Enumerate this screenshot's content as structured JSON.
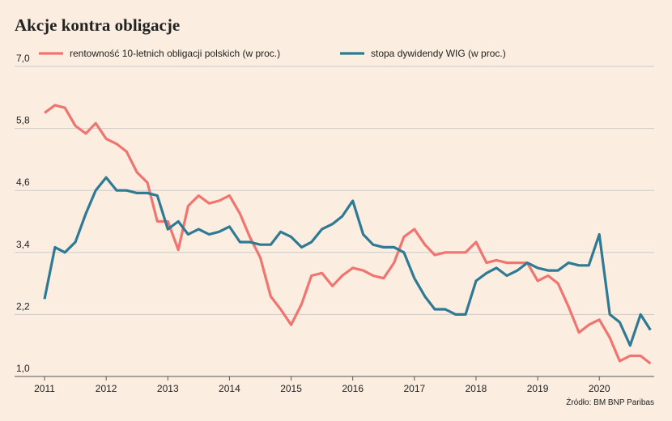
{
  "chart_data": {
    "type": "line",
    "title": "Akcje kontra obligacje",
    "source": "Źródło: BM BNP Paribas",
    "x": [
      2011,
      2011.17,
      2011.33,
      2011.5,
      2011.67,
      2011.83,
      2012,
      2012.17,
      2012.33,
      2012.5,
      2012.67,
      2012.83,
      2013,
      2013.17,
      2013.33,
      2013.5,
      2013.67,
      2013.83,
      2014,
      2014.17,
      2014.33,
      2014.5,
      2014.67,
      2014.83,
      2015,
      2015.17,
      2015.33,
      2015.5,
      2015.67,
      2015.83,
      2016,
      2016.17,
      2016.33,
      2016.5,
      2016.67,
      2016.83,
      2017,
      2017.17,
      2017.33,
      2017.5,
      2017.67,
      2017.83,
      2018,
      2018.17,
      2018.33,
      2018.5,
      2018.67,
      2018.83,
      2019,
      2019.17,
      2019.33,
      2019.5,
      2019.67,
      2019.83,
      2020,
      2020.17,
      2020.33,
      2020.5,
      2020.67,
      2020.83
    ],
    "series": [
      {
        "name": "rentowność 10-letnich obligacji polskich (w proc.)",
        "color": "#f07470",
        "values": [
          6.1,
          6.25,
          6.2,
          5.85,
          5.7,
          5.9,
          5.6,
          5.5,
          5.35,
          4.95,
          4.75,
          4.0,
          4.0,
          3.45,
          4.3,
          4.5,
          4.35,
          4.4,
          4.5,
          4.15,
          3.7,
          3.3,
          2.55,
          2.3,
          2.0,
          2.4,
          2.95,
          3.0,
          2.75,
          2.95,
          3.1,
          3.05,
          2.95,
          2.9,
          3.2,
          3.7,
          3.85,
          3.55,
          3.35,
          3.4,
          3.4,
          3.4,
          3.6,
          3.2,
          3.25,
          3.2,
          3.2,
          3.2,
          2.85,
          2.95,
          2.8,
          2.35,
          1.85,
          2.0,
          2.1,
          1.75,
          1.3,
          1.4,
          1.4,
          1.25
        ]
      },
      {
        "name": "stopa dywidendy WIG (w proc.)",
        "color": "#2e7a94",
        "values": [
          2.5,
          3.5,
          3.4,
          3.6,
          4.15,
          4.6,
          4.85,
          4.6,
          4.6,
          4.55,
          4.55,
          4.5,
          3.85,
          4.0,
          3.75,
          3.85,
          3.75,
          3.8,
          3.9,
          3.6,
          3.6,
          3.55,
          3.55,
          3.8,
          3.7,
          3.5,
          3.6,
          3.85,
          3.95,
          4.1,
          4.4,
          3.75,
          3.55,
          3.5,
          3.5,
          3.4,
          2.9,
          2.55,
          2.3,
          2.3,
          2.2,
          2.2,
          2.85,
          3.0,
          3.1,
          2.95,
          3.05,
          3.2,
          3.1,
          3.05,
          3.05,
          3.2,
          3.15,
          3.15,
          3.75,
          2.2,
          2.05,
          1.6,
          2.2,
          1.9
        ]
      }
    ],
    "xlim": [
      2011,
      2020.89
    ],
    "xticks": [
      2011,
      2012,
      2013,
      2014,
      2015,
      2016,
      2017,
      2018,
      2019,
      2020
    ],
    "ylim": [
      1.0,
      7.0
    ],
    "yticks": [
      {
        "value": 1.0,
        "label": "1,0"
      },
      {
        "value": 2.2,
        "label": "2,2"
      },
      {
        "value": 3.4,
        "label": "3,4"
      },
      {
        "value": 4.6,
        "label": "4,6"
      },
      {
        "value": 5.8,
        "label": "5,8"
      },
      {
        "value": 7.0,
        "label": "7,0"
      }
    ],
    "grid": true
  }
}
